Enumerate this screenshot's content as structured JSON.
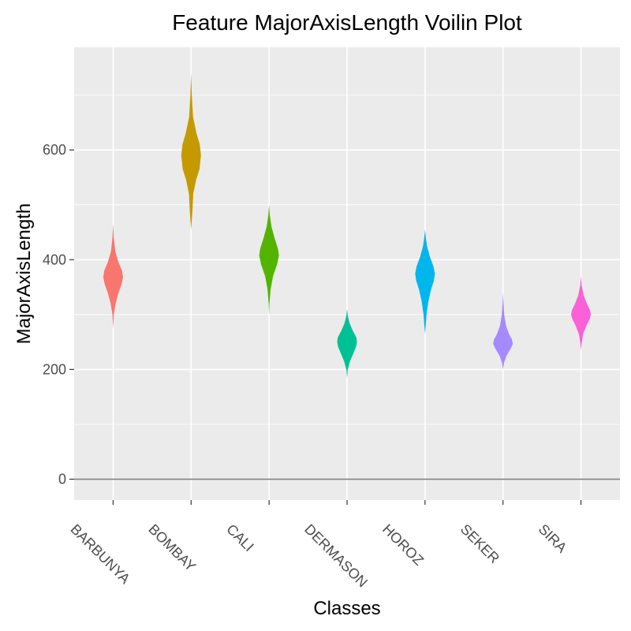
{
  "chart_data": {
    "type": "violin",
    "title": "Feature MajorAxisLength Voilin Plot",
    "xlabel": "Classes",
    "ylabel": "MajorAxisLength",
    "ylim": [
      -38,
      787
    ],
    "yticks": [
      0,
      200,
      400,
      600
    ],
    "yticks_text": [
      "0",
      "200",
      "400",
      "600"
    ],
    "grid": true,
    "hline_at": 0,
    "hline_color": "#808080",
    "categories": [
      "BARBUNYA",
      "BOMBAY",
      "CALI",
      "DERMASON",
      "HOROZ",
      "SEKER",
      "SIRA"
    ],
    "colors": [
      "#F8766D",
      "#C49A00",
      "#53B400",
      "#00C094",
      "#00B6EB",
      "#A58AFF",
      "#FB61D7"
    ],
    "series": [
      {
        "category": "BARBUNYA",
        "min": 275,
        "max": 465,
        "mode": 370,
        "profile": [
          [
            275,
            0
          ],
          [
            300,
            0.07
          ],
          [
            320,
            0.25
          ],
          [
            340,
            0.55
          ],
          [
            355,
            0.85
          ],
          [
            368,
            1.0
          ],
          [
            380,
            0.9
          ],
          [
            395,
            0.55
          ],
          [
            415,
            0.22
          ],
          [
            440,
            0.07
          ],
          [
            465,
            0
          ]
        ]
      },
      {
        "category": "BOMBAY",
        "min": 455,
        "max": 740,
        "mode": 590,
        "profile": [
          [
            455,
            0
          ],
          [
            485,
            0.12
          ],
          [
            520,
            0.22
          ],
          [
            545,
            0.5
          ],
          [
            565,
            0.85
          ],
          [
            590,
            1.0
          ],
          [
            610,
            0.88
          ],
          [
            630,
            0.55
          ],
          [
            660,
            0.2
          ],
          [
            700,
            0.07
          ],
          [
            740,
            0
          ]
        ]
      },
      {
        "category": "CALI",
        "min": 298,
        "max": 500,
        "mode": 410,
        "profile": [
          [
            298,
            0
          ],
          [
            320,
            0.04
          ],
          [
            345,
            0.15
          ],
          [
            370,
            0.4
          ],
          [
            392,
            0.82
          ],
          [
            408,
            1.0
          ],
          [
            420,
            0.9
          ],
          [
            440,
            0.55
          ],
          [
            460,
            0.25
          ],
          [
            480,
            0.08
          ],
          [
            500,
            0
          ]
        ]
      },
      {
        "category": "DERMASON",
        "min": 185,
        "max": 310,
        "mode": 250,
        "profile": [
          [
            185,
            0
          ],
          [
            200,
            0.07
          ],
          [
            215,
            0.3
          ],
          [
            230,
            0.65
          ],
          [
            242,
            0.92
          ],
          [
            250,
            1.0
          ],
          [
            258,
            0.95
          ],
          [
            270,
            0.6
          ],
          [
            283,
            0.28
          ],
          [
            297,
            0.08
          ],
          [
            310,
            0
          ]
        ]
      },
      {
        "category": "HOROZ",
        "min": 265,
        "max": 455,
        "mode": 375,
        "profile": [
          [
            265,
            0
          ],
          [
            280,
            0.07
          ],
          [
            300,
            0.15
          ],
          [
            325,
            0.35
          ],
          [
            345,
            0.6
          ],
          [
            362,
            0.9
          ],
          [
            375,
            1.0
          ],
          [
            388,
            0.85
          ],
          [
            405,
            0.5
          ],
          [
            425,
            0.2
          ],
          [
            440,
            0.08
          ],
          [
            455,
            0
          ]
        ]
      },
      {
        "category": "SEKER",
        "min": 200,
        "max": 340,
        "mode": 247,
        "profile": [
          [
            200,
            0
          ],
          [
            212,
            0.1
          ],
          [
            225,
            0.35
          ],
          [
            238,
            0.78
          ],
          [
            247,
            1.0
          ],
          [
            255,
            0.9
          ],
          [
            265,
            0.6
          ],
          [
            280,
            0.3
          ],
          [
            300,
            0.12
          ],
          [
            320,
            0.05
          ],
          [
            340,
            0
          ]
        ]
      },
      {
        "category": "SIRA",
        "min": 235,
        "max": 370,
        "mode": 300,
        "profile": [
          [
            235,
            0
          ],
          [
            250,
            0.08
          ],
          [
            265,
            0.22
          ],
          [
            280,
            0.55
          ],
          [
            292,
            0.88
          ],
          [
            300,
            1.0
          ],
          [
            308,
            0.92
          ],
          [
            320,
            0.6
          ],
          [
            335,
            0.28
          ],
          [
            352,
            0.08
          ],
          [
            370,
            0
          ]
        ]
      }
    ]
  }
}
